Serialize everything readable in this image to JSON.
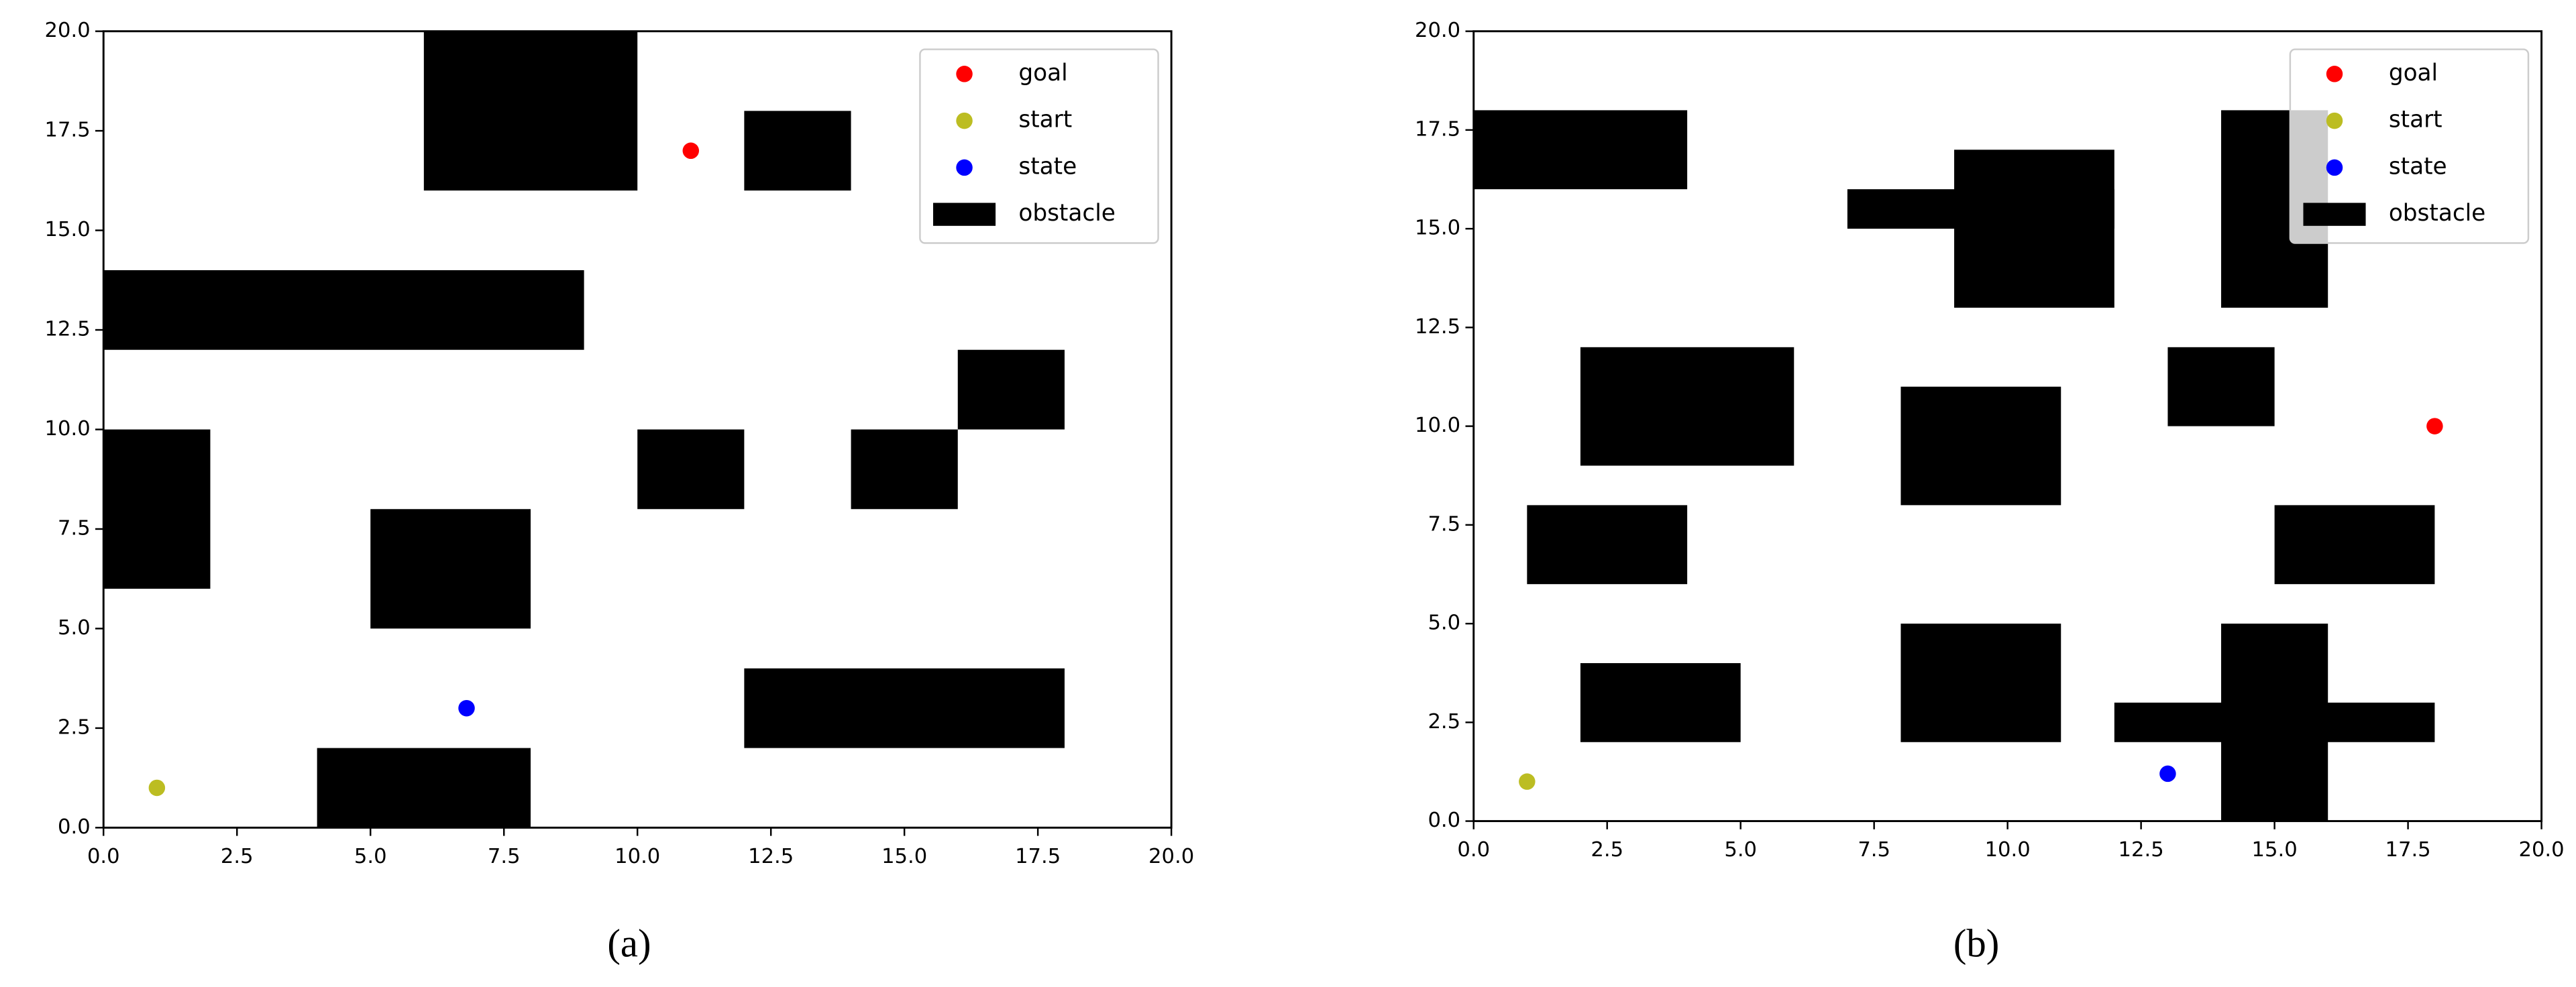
{
  "chart_data": [
    {
      "type": "scatter",
      "caption": "(a)",
      "legend": "upper right",
      "xlim": [
        0,
        20
      ],
      "ylim": [
        0,
        20
      ],
      "xticks": [
        {
          "value": 0,
          "label": "0.0"
        },
        {
          "value": 2.5,
          "label": "2.5"
        },
        {
          "value": 5,
          "label": "5.0"
        },
        {
          "value": 7.5,
          "label": "7.5"
        },
        {
          "value": 10,
          "label": "10.0"
        },
        {
          "value": 12.5,
          "label": "12.5"
        },
        {
          "value": 15,
          "label": "15.0"
        },
        {
          "value": 17.5,
          "label": "17.5"
        },
        {
          "value": 20,
          "label": "20.0"
        }
      ],
      "yticks": [
        {
          "value": 0,
          "label": "0.0"
        },
        {
          "value": 2.5,
          "label": "2.5"
        },
        {
          "value": 5,
          "label": "5.0"
        },
        {
          "value": 7.5,
          "label": "7.5"
        },
        {
          "value": 10,
          "label": "10.0"
        },
        {
          "value": 12.5,
          "label": "12.5"
        },
        {
          "value": 15,
          "label": "15.0"
        },
        {
          "value": 17.5,
          "label": "17.5"
        },
        {
          "value": 20,
          "label": "20.0"
        }
      ],
      "series": [
        {
          "name": "goal",
          "color": "#ff0000",
          "x": [
            11
          ],
          "y": [
            17
          ]
        },
        {
          "name": "start",
          "color": "#bcbd22",
          "x": [
            1
          ],
          "y": [
            1
          ]
        },
        {
          "name": "state",
          "color": "#0000ff",
          "x": [
            6.8
          ],
          "y": [
            3
          ]
        },
        {
          "name": "obstacle",
          "color": "#000000",
          "x0": [
            6,
            12,
            0,
            16,
            0,
            10,
            14,
            5,
            12,
            4
          ],
          "x1": [
            10,
            14,
            9,
            18,
            2,
            12,
            16,
            8,
            18,
            8
          ],
          "y0": [
            16,
            16,
            12,
            10,
            6,
            8,
            8,
            5,
            2,
            0
          ],
          "y1": [
            20,
            18,
            14,
            12,
            10,
            10,
            10,
            8,
            4,
            2
          ]
        }
      ]
    },
    {
      "type": "scatter",
      "caption": "(b)",
      "legend": "upper right",
      "xlim": [
        0,
        20
      ],
      "ylim": [
        0,
        20
      ],
      "xticks": [
        {
          "value": 0,
          "label": "0.0"
        },
        {
          "value": 2.5,
          "label": "2.5"
        },
        {
          "value": 5,
          "label": "5.0"
        },
        {
          "value": 7.5,
          "label": "7.5"
        },
        {
          "value": 10,
          "label": "10.0"
        },
        {
          "value": 12.5,
          "label": "12.5"
        },
        {
          "value": 15,
          "label": "15.0"
        },
        {
          "value": 17.5,
          "label": "17.5"
        },
        {
          "value": 20,
          "label": "20.0"
        }
      ],
      "yticks": [
        {
          "value": 0,
          "label": "0.0"
        },
        {
          "value": 2.5,
          "label": "2.5"
        },
        {
          "value": 5,
          "label": "5.0"
        },
        {
          "value": 7.5,
          "label": "7.5"
        },
        {
          "value": 10,
          "label": "10.0"
        },
        {
          "value": 12.5,
          "label": "12.5"
        },
        {
          "value": 15,
          "label": "15.0"
        },
        {
          "value": 17.5,
          "label": "17.5"
        },
        {
          "value": 20,
          "label": "20.0"
        }
      ],
      "series": [
        {
          "name": "goal",
          "color": "#ff0000",
          "x": [
            18
          ],
          "y": [
            10
          ]
        },
        {
          "name": "start",
          "color": "#bcbd22",
          "x": [
            1
          ],
          "y": [
            1
          ]
        },
        {
          "name": "state",
          "color": "#0000ff",
          "x": [
            13
          ],
          "y": [
            1.2
          ]
        },
        {
          "name": "obstacle",
          "color": "#000000",
          "x0": [
            0,
            7,
            9,
            14,
            2,
            8,
            13,
            1,
            15,
            2,
            8,
            14,
            12
          ],
          "x1": [
            4,
            12,
            12,
            16,
            6,
            11,
            15,
            4,
            18,
            5,
            11,
            16,
            18
          ],
          "y0": [
            16,
            15,
            13,
            13,
            9,
            8,
            10,
            6,
            6,
            2,
            2,
            0,
            2
          ],
          "y1": [
            18,
            16,
            17,
            18,
            12,
            11,
            12,
            8,
            8,
            4,
            5,
            5,
            3
          ]
        }
      ]
    }
  ]
}
